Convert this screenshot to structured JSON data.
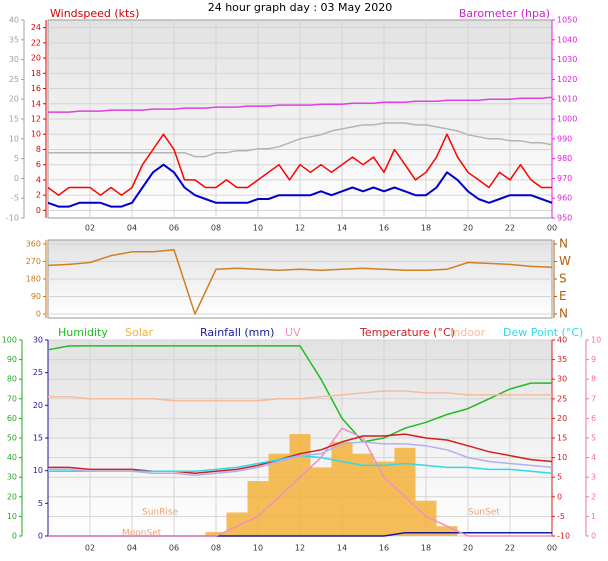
{
  "title": "24 hour graph day : 03 May 2020",
  "chart_data": [
    {
      "type": "line",
      "ylabel": "Windspeed (kts)",
      "y2label": "Barometer (hpa)",
      "grid": true,
      "xlim": [
        0,
        24
      ],
      "xticks": [
        {
          "value": 2,
          "label": "02"
        },
        {
          "value": 4,
          "label": "04"
        },
        {
          "value": 6,
          "label": "06"
        },
        {
          "value": 8,
          "label": "08"
        },
        10,
        12,
        14,
        16,
        18,
        20,
        22,
        {
          "value": 24,
          "label": "00"
        }
      ],
      "ylim": [
        -1,
        25
      ],
      "yticks": [
        0,
        2,
        4,
        6,
        8,
        10,
        12,
        14,
        16,
        18,
        20,
        22,
        24
      ],
      "y2lim": [
        950,
        1050
      ],
      "y2ticks": [
        950,
        960,
        970,
        980,
        990,
        1000,
        1010,
        1020,
        1030,
        1040,
        1050
      ],
      "y3lim": [
        -10,
        40
      ],
      "y3ticks": [
        -10,
        -5,
        0,
        5,
        10,
        15,
        20,
        25,
        30,
        35,
        40
      ],
      "x": [
        0,
        0.5,
        1,
        1.5,
        2,
        2.5,
        3,
        3.5,
        4,
        4.5,
        5,
        5.5,
        6,
        6.5,
        7,
        7.5,
        8,
        8.5,
        9,
        9.5,
        10,
        10.5,
        11,
        11.5,
        12,
        12.5,
        13,
        13.5,
        14,
        14.5,
        15,
        15.5,
        16,
        16.5,
        17,
        17.5,
        18,
        18.5,
        19,
        19.5,
        20,
        20.5,
        21,
        21.5,
        22,
        22.5,
        23,
        23.5,
        24
      ],
      "series": [
        {
          "color": "#b4b4b4",
          "axis": "y3",
          "values": [
            6.5,
            6.5,
            6.5,
            6.5,
            6.5,
            6.5,
            6.5,
            6.5,
            6.5,
            6.5,
            6.5,
            6.5,
            6.5,
            6.5,
            5.5,
            5.5,
            6.5,
            6.5,
            7,
            7,
            7.5,
            7.5,
            8,
            9,
            10,
            10.5,
            11,
            12,
            12.5,
            13,
            13.5,
            13.5,
            14,
            14,
            14,
            13.5,
            13.5,
            13,
            12.5,
            12,
            11,
            10.5,
            10,
            10,
            9.5,
            9.5,
            9,
            9,
            8.5
          ]
        },
        {
          "color": "#e040e0",
          "axis": "y2",
          "values": [
            1003.5,
            1003.5,
            1003.5,
            1004,
            1004,
            1004,
            1004.5,
            1004.5,
            1004.5,
            1004.5,
            1005,
            1005,
            1005,
            1005.5,
            1005.5,
            1005.5,
            1006,
            1006,
            1006,
            1006.5,
            1006.5,
            1006.5,
            1007,
            1007,
            1007,
            1007,
            1007.5,
            1007.5,
            1007.5,
            1008,
            1008,
            1008,
            1008.5,
            1008.5,
            1008.5,
            1009,
            1009,
            1009,
            1009.5,
            1009.5,
            1009.5,
            1009.5,
            1010,
            1010,
            1010,
            1010.5,
            1010.5,
            1010.5,
            1011
          ]
        },
        {
          "color": "#ff0000",
          "values": [
            3,
            2,
            3,
            3,
            3,
            2,
            3,
            2,
            3,
            6,
            8,
            10,
            8,
            4,
            4,
            3,
            3,
            4,
            3,
            3,
            4,
            5,
            6,
            4,
            6,
            5,
            6,
            5,
            6,
            7,
            6,
            7,
            5,
            8,
            6,
            4,
            5,
            7,
            10,
            7,
            5,
            4,
            3,
            5,
            4,
            6,
            4,
            3,
            3
          ]
        },
        {
          "color": "#0000c8",
          "values": [
            1,
            0.5,
            0.5,
            1,
            1,
            1,
            0.5,
            0.5,
            1,
            3,
            5,
            6,
            5,
            3,
            2,
            1.5,
            1,
            1,
            1,
            1,
            1.5,
            1.5,
            2,
            2,
            2,
            2,
            2.5,
            2,
            2.5,
            3,
            2.5,
            3,
            2.5,
            3,
            2.5,
            2,
            2,
            3,
            5,
            4,
            2.5,
            1.5,
            1,
            1.5,
            2,
            2,
            2,
            1.5,
            1
          ]
        }
      ]
    },
    {
      "type": "line",
      "grid": true,
      "xlim": [
        0,
        24
      ],
      "ylim": [
        0,
        360
      ],
      "yticks": [
        0,
        90,
        180,
        270,
        360
      ],
      "y2lim": [
        0,
        360
      ],
      "y2ticks": [
        {
          "value": 360,
          "label": "N"
        },
        {
          "value": 270,
          "label": "W"
        },
        {
          "value": 180,
          "label": "S"
        },
        {
          "value": 90,
          "label": "E"
        },
        {
          "value": 0,
          "label": "N"
        }
      ],
      "x": [
        0,
        1,
        2,
        3,
        4,
        5,
        6,
        7,
        8,
        9,
        10,
        11,
        12,
        13,
        14,
        15,
        16,
        17,
        18,
        19,
        20,
        21,
        22,
        23,
        24
      ],
      "series": [
        {
          "color": "#d08020",
          "values": [
            250,
            255,
            265,
            300,
            320,
            320,
            330,
            0,
            230,
            235,
            230,
            225,
            230,
            225,
            230,
            235,
            230,
            225,
            225,
            230,
            265,
            260,
            255,
            245,
            240
          ]
        }
      ]
    },
    {
      "type": "line",
      "grid": true,
      "xlim": [
        0,
        24
      ],
      "xticks": [
        {
          "value": 2,
          "label": "02"
        },
        {
          "value": 4,
          "label": "04"
        },
        {
          "value": 6,
          "label": "06"
        },
        {
          "value": 8,
          "label": "08"
        },
        10,
        12,
        14,
        16,
        18,
        20,
        22,
        {
          "value": 24,
          "label": "00"
        }
      ],
      "ylim": [
        0,
        100
      ],
      "yticks": [
        0,
        10,
        20,
        30,
        40,
        50,
        60,
        70,
        80,
        90,
        100
      ],
      "y2lim": [
        -10,
        40
      ],
      "y2ticks": [
        -10,
        -5,
        0,
        5,
        10,
        15,
        20,
        25,
        30,
        35,
        40
      ],
      "y3lim": [
        0,
        30
      ],
      "y3ticks": [
        0,
        5,
        10,
        15,
        20,
        25,
        30
      ],
      "y4lim": [
        0,
        10
      ],
      "y4ticks": [
        0,
        1,
        2,
        3,
        4,
        5,
        6,
        7,
        8,
        9,
        10
      ],
      "annotations": [
        "SunRise",
        "MoonSet",
        "SunSet"
      ],
      "x": [
        0,
        1,
        2,
        3,
        4,
        5,
        6,
        7,
        8,
        9,
        10,
        11,
        12,
        13,
        14,
        15,
        16,
        17,
        18,
        19,
        20,
        21,
        22,
        23,
        24
      ],
      "series": [
        {
          "name": "Humidity",
          "color": "#22bb22",
          "values": [
            95,
            97,
            97,
            97,
            97,
            97,
            97,
            97,
            97,
            97,
            97,
            97,
            97,
            80,
            60,
            48,
            50,
            55,
            58,
            62,
            65,
            70,
            75,
            78,
            78
          ]
        },
        {
          "name": "Solar",
          "color": "#f2b23a",
          "type": "bar",
          "values": [
            0,
            0,
            0,
            0,
            0,
            0,
            0,
            0,
            2,
            12,
            28,
            42,
            52,
            35,
            48,
            42,
            38,
            45,
            18,
            5,
            0,
            0,
            0,
            0,
            0
          ]
        },
        {
          "name": "Rainfall (mm)",
          "color": "#1a1a9c",
          "axis": "y3",
          "values": [
            0,
            0,
            0,
            0,
            0,
            0,
            0,
            0,
            0,
            0,
            0,
            0,
            0,
            0,
            0,
            0,
            0,
            0.5,
            0.5,
            0.5,
            0.5,
            0.5,
            0.5,
            0.5,
            0.5
          ]
        },
        {
          "name": "UV",
          "color": "#f090c0",
          "axis": "y4",
          "values": [
            0,
            0,
            0,
            0,
            0,
            0,
            0,
            0,
            0,
            0.5,
            1,
            2,
            3,
            4,
            5.5,
            5,
            3,
            2,
            1,
            0.5,
            0,
            0,
            0,
            0,
            0
          ]
        },
        {
          "name": "Temperature (°C)",
          "color": "#d02020",
          "axis": "y2",
          "values": [
            7.5,
            7.5,
            7,
            7,
            7,
            6.5,
            6.5,
            6,
            6.5,
            7,
            8,
            9.5,
            11,
            12,
            14,
            15.5,
            15.5,
            16,
            15,
            14.5,
            13,
            11.5,
            10.5,
            9.5,
            9
          ]
        },
        {
          "name": "Indoor",
          "color": "#f4bc9c",
          "axis": "y2",
          "values": [
            25.5,
            25.5,
            25,
            25,
            25,
            25,
            24.5,
            24.5,
            24.5,
            24.5,
            24.5,
            25,
            25,
            25.5,
            26,
            26.5,
            27,
            27,
            26.5,
            26.5,
            26,
            26,
            26,
            26,
            26
          ]
        },
        {
          "name": "Dew Point (°C)",
          "color": "#30d8e8",
          "axis": "y2",
          "values": [
            6.5,
            6.5,
            6.5,
            6.5,
            6.5,
            6.5,
            6.5,
            6.5,
            7,
            7.5,
            8.5,
            9.5,
            10.5,
            10,
            9,
            8,
            8,
            8.5,
            8,
            7.5,
            7.5,
            7,
            7,
            6.5,
            6
          ]
        },
        {
          "color": "#b0b0f0",
          "axis": "y2",
          "values": [
            7,
            7,
            6.5,
            6.5,
            6.5,
            6,
            6,
            5.5,
            6,
            6.5,
            7.5,
            9,
            10.5,
            11,
            13.5,
            14,
            13.5,
            13.5,
            13,
            12,
            10,
            9,
            8.5,
            8,
            7.5
          ]
        }
      ]
    }
  ]
}
